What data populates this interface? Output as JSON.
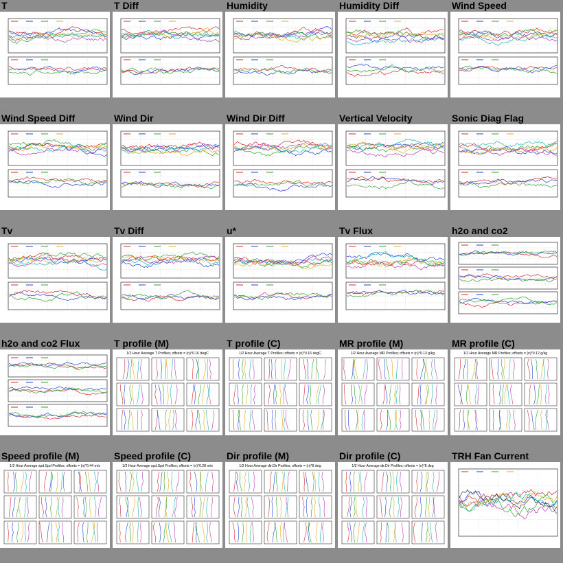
{
  "tiles": [
    {
      "title": "T",
      "kind": "two"
    },
    {
      "title": "T Diff",
      "kind": "two"
    },
    {
      "title": "Humidity",
      "kind": "two"
    },
    {
      "title": "Humidity Diff",
      "kind": "two"
    },
    {
      "title": "Wind Speed",
      "kind": "two"
    },
    {
      "title": "Wind Speed Diff",
      "kind": "two"
    },
    {
      "title": "Wind Dir",
      "kind": "two"
    },
    {
      "title": "Wind Dir Diff",
      "kind": "two"
    },
    {
      "title": "Vertical Velocity",
      "kind": "two"
    },
    {
      "title": "Sonic Diag Flag",
      "kind": "two"
    },
    {
      "title": "Tv",
      "kind": "two"
    },
    {
      "title": "Tv Diff",
      "kind": "two"
    },
    {
      "title": "u*",
      "kind": "two"
    },
    {
      "title": "Tv Flux",
      "kind": "two"
    },
    {
      "title": "h2o and co2",
      "kind": "three"
    },
    {
      "title": "h2o and co2 Flux",
      "kind": "three"
    },
    {
      "title": "T profile (M)",
      "kind": "profile",
      "caption": "1/2 Hour Average T Profiles; offsets = (n)*0.16 degC"
    },
    {
      "title": "T profile (C)",
      "kind": "profile",
      "caption": "1/2 Hour Average T Profiles; offsets = (n)*0.16 degC"
    },
    {
      "title": "MR profile (M)",
      "kind": "profile",
      "caption": "1/2 Hour Average MR Profiles; offsets = (n)*0.13 g/kg"
    },
    {
      "title": "MR profile (C)",
      "kind": "profile",
      "caption": "1/2 Hour Average MR Profiles; offsets = (n)*0.12 g/kg"
    },
    {
      "title": "Speed profile (M)",
      "kind": "profile",
      "caption": "1/2 Hour Average spd.Spd Profiles; offsets = (n)*0.44 m/s"
    },
    {
      "title": "Speed profile (C)",
      "kind": "profile",
      "caption": "1/2 Hour Average spd.Spd Profiles; offsets = (n)*0.28 m/s"
    },
    {
      "title": "Dir profile (M)",
      "kind": "profile",
      "caption": "1/2 Hour Average dir.Dir Profiles; offsets = (n)*8 deg"
    },
    {
      "title": "Dir profile (C)",
      "kind": "profile",
      "caption": "1/2 Hour Average dir.Dir Profiles; offsets = (n)*8 deg"
    },
    {
      "title": "TRH Fan Current",
      "kind": "one"
    }
  ],
  "colors": {
    "background": "#8c8c8c",
    "series": [
      "#d62728",
      "#1f3fd6",
      "#2ca02c",
      "#e6a817",
      "#17b3b3",
      "#b23ab2",
      "#333333"
    ]
  }
}
